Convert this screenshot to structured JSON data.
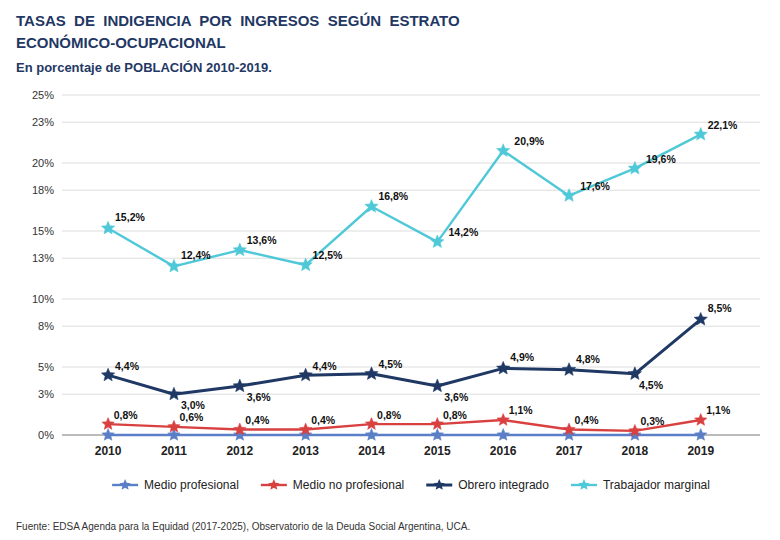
{
  "chart_data": {
    "type": "line",
    "title": [
      "TASAS  DE  INDIGENCIA  POR  INGRESOS  SEGÚN  ESTRATO",
      "ECONÓMICO-OCUPACIONAL"
    ],
    "subtitle": "En porcentaje de POBLACIÓN 2010-2019.",
    "source": "Fuente: EDSA Agenda para la Equidad (2017-2025), Observatorio de la Deuda Social Argentina, UCA.",
    "x": [
      2010,
      2011,
      2012,
      2013,
      2014,
      2015,
      2016,
      2017,
      2018,
      2019
    ],
    "xlim": [
      2009.3,
      2019.9
    ],
    "xticks": [
      2010,
      2011,
      2012,
      2013,
      2014,
      2015,
      2016,
      2017,
      2018,
      2019
    ],
    "ylim": [
      0,
      25
    ],
    "yticks": [
      {
        "value": 0,
        "label": "0%"
      },
      {
        "value": 3,
        "label": "3%"
      },
      {
        "value": 5,
        "label": "5%"
      },
      {
        "value": 8,
        "label": "8%"
      },
      {
        "value": 10,
        "label": "10%"
      },
      {
        "value": 13,
        "label": "13%"
      },
      {
        "value": 15,
        "label": "15%"
      },
      {
        "value": 18,
        "label": "18%"
      },
      {
        "value": 20,
        "label": "20%"
      },
      {
        "value": 23,
        "label": "23%"
      },
      {
        "value": 25,
        "label": "25%"
      }
    ],
    "grid": true,
    "legend": "bottom",
    "data_labels": true,
    "series": [
      {
        "name": "Medio profesional",
        "color": "#5b7fc7",
        "marker": "star",
        "values": [
          0.0,
          0.0,
          0.0,
          0.0,
          0.0,
          0.0,
          0.0,
          0.0,
          0.0,
          0.0
        ]
      },
      {
        "name": "Medio no profesional",
        "color": "#d94040",
        "marker": "star",
        "values": [
          0.8,
          0.6,
          0.4,
          0.4,
          0.8,
          0.8,
          1.1,
          0.4,
          0.3,
          1.1
        ],
        "value_labels": [
          "0,8%",
          "0,6%",
          "0,4%",
          "0,4%",
          "0,8%",
          "0,8%",
          "1,1%",
          "0,4%",
          "0,3%",
          "1,1%"
        ]
      },
      {
        "name": "Obrero integrado",
        "color": "#1f3864",
        "marker": "star",
        "values": [
          4.4,
          3.0,
          3.6,
          4.4,
          4.5,
          3.6,
          4.9,
          4.8,
          4.5,
          8.5
        ],
        "value_labels": [
          "4,4%",
          "3,0%",
          "3,6%",
          "4,4%",
          "4,5%",
          "3,6%",
          "4,9%",
          "4,8%",
          "4,5%",
          "8,5%"
        ]
      },
      {
        "name": "Trabajador marginal",
        "color": "#4fc8d8",
        "marker": "star",
        "values": [
          15.2,
          12.4,
          13.6,
          12.5,
          16.8,
          14.2,
          20.9,
          17.6,
          19.6,
          22.1
        ],
        "value_labels": [
          "15,2%",
          "12,4%",
          "13,6%",
          "12,5%",
          "16,8%",
          "14,2%",
          "20,9%",
          "17,6%",
          "19,6%",
          "22,1%"
        ]
      }
    ]
  }
}
